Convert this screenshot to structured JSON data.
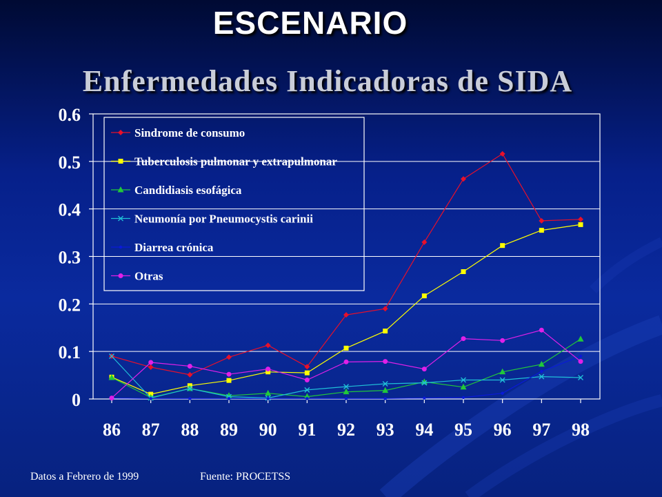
{
  "slide": {
    "heading": "ESCENARIO",
    "subheading": "Enfermedades Indicadoras de SIDA",
    "footer_left": "Datos a Febrero de  1999",
    "footer_right": "Fuente: PROCETSS"
  },
  "chart_data": {
    "type": "line",
    "title": "",
    "xlabel": "",
    "ylabel": "",
    "ylim": [
      0,
      0.6
    ],
    "yticks": [
      "0",
      "0.1",
      "0.2",
      "0.3",
      "0.4",
      "0.5",
      "0.6"
    ],
    "grid": true,
    "legend_position": "top-left",
    "categories": [
      "86",
      "87",
      "88",
      "89",
      "90",
      "91",
      "92",
      "93",
      "94",
      "95",
      "96",
      "97",
      "98"
    ],
    "series": [
      {
        "name": "Sindrome de consumo",
        "color": "#e8102a",
        "marker": "diamond",
        "values": [
          0.09,
          0.067,
          0.051,
          0.088,
          0.113,
          0.068,
          0.177,
          0.19,
          0.33,
          0.463,
          0.516,
          0.375,
          0.378
        ]
      },
      {
        "name": "Tuberculosis pulmonar y extrapulmonar",
        "color": "#ffff00",
        "marker": "square",
        "values": [
          0.046,
          0.01,
          0.028,
          0.039,
          0.057,
          0.055,
          0.107,
          0.143,
          0.217,
          0.268,
          0.323,
          0.355,
          0.367
        ]
      },
      {
        "name": "Candidiasis esofágica",
        "color": "#22c83a",
        "marker": "triangle",
        "values": [
          0.045,
          0.003,
          0.022,
          0.007,
          0.012,
          0.005,
          0.015,
          0.018,
          0.036,
          0.025,
          0.057,
          0.073,
          0.126
        ]
      },
      {
        "name": "Neumonía por Pneumocystis carinii",
        "color": "#20c0d8",
        "marker": "x",
        "values": [
          0.09,
          0.002,
          0.022,
          0.005,
          0.002,
          0.019,
          0.026,
          0.032,
          0.034,
          0.04,
          0.04,
          0.047,
          0.045
        ]
      },
      {
        "name": "Diarrea crónica",
        "color": "#0a1ad8",
        "marker": "dot",
        "values": [
          0.002,
          0.001,
          0.001,
          0.001,
          0.001,
          0.001,
          0.001,
          0.001,
          0.002,
          0.003,
          0.012,
          0.058,
          0.09
        ]
      },
      {
        "name": "Otras",
        "color": "#e020e8",
        "marker": "circle",
        "values": [
          0.002,
          0.077,
          0.069,
          0.052,
          0.063,
          0.04,
          0.078,
          0.079,
          0.063,
          0.127,
          0.123,
          0.145,
          0.079
        ]
      }
    ]
  }
}
